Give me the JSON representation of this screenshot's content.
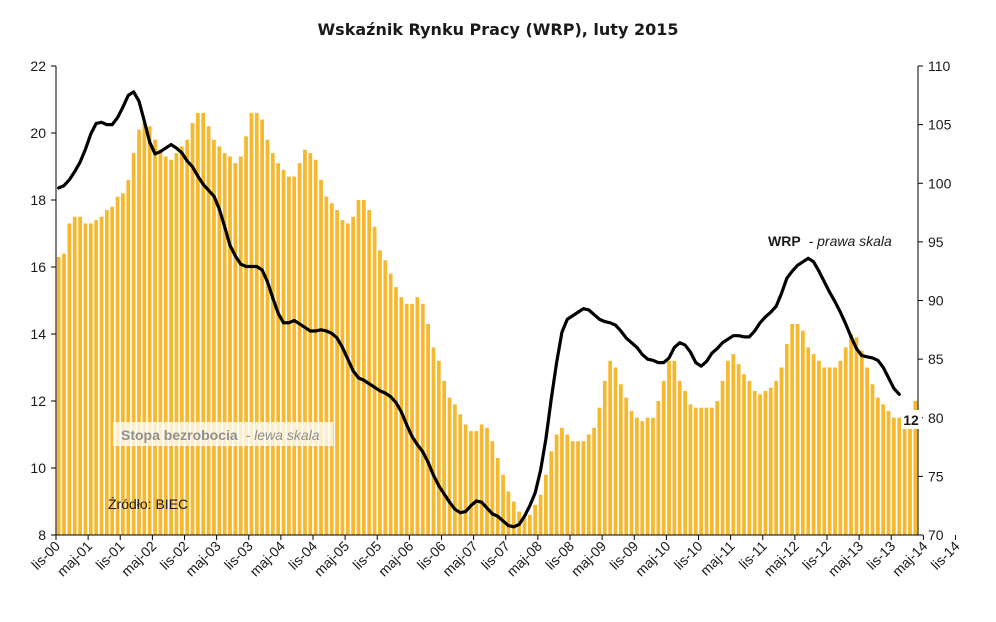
{
  "colors": {
    "bar": "#f5b82e",
    "line": "#000000",
    "axis": "#000000",
    "bar_label_bg": "#ffffff"
  },
  "chart_data": {
    "type": "bar+line",
    "title": "Wskaźnik Rynku Pracy (WRP), luty 2015",
    "x_tick_labels": [
      "lis-00",
      "maj-01",
      "lis-01",
      "maj-02",
      "lis-02",
      "maj-03",
      "lis-03",
      "maj-04",
      "lis-04",
      "maj-05",
      "lis-05",
      "maj-06",
      "lis-06",
      "maj-07",
      "lis-07",
      "maj-08",
      "lis-08",
      "maj-09",
      "lis-09",
      "maj-10",
      "lis-10",
      "maj-11",
      "lis-11",
      "maj-12",
      "lis-12",
      "maj-13",
      "lis-13",
      "maj-14",
      "lis-14"
    ],
    "y_left": {
      "min": 8,
      "max": 22,
      "ticks": [
        "8",
        "10",
        "12",
        "14",
        "16",
        "18",
        "20",
        "22"
      ]
    },
    "y_right": {
      "min": 70,
      "max": 110,
      "ticks": [
        "70",
        "75",
        "80",
        "85",
        "90",
        "95",
        "100",
        "105",
        "110"
      ]
    },
    "start_month": "lis-00",
    "bars": {
      "name": "Stopa bezrobocia",
      "name_suffix": "- lewa skala",
      "axis": "left",
      "values": [
        16.3,
        16.4,
        17.3,
        17.5,
        17.5,
        17.3,
        17.3,
        17.4,
        17.5,
        17.7,
        17.8,
        18.1,
        18.2,
        18.6,
        19.4,
        20.1,
        20.3,
        20.2,
        19.8,
        19.5,
        19.3,
        19.2,
        19.4,
        19.6,
        19.8,
        20.3,
        20.6,
        20.6,
        20.2,
        19.8,
        19.6,
        19.4,
        19.3,
        19.1,
        19.3,
        19.9,
        20.6,
        20.6,
        20.4,
        19.8,
        19.4,
        19.1,
        18.9,
        18.7,
        18.7,
        19.1,
        19.5,
        19.4,
        19.2,
        18.6,
        18.1,
        17.9,
        17.7,
        17.4,
        17.3,
        17.5,
        18.0,
        18.0,
        17.7,
        17.2,
        16.5,
        16.2,
        15.8,
        15.4,
        15.1,
        14.9,
        14.9,
        15.1,
        14.9,
        14.3,
        13.6,
        13.2,
        12.6,
        12.1,
        11.9,
        11.6,
        11.3,
        11.1,
        11.1,
        11.3,
        11.2,
        10.8,
        10.3,
        9.8,
        9.3,
        9.0,
        8.7,
        8.5,
        8.6,
        8.9,
        9.2,
        9.8,
        10.5,
        11.0,
        11.2,
        11.0,
        10.8,
        10.8,
        10.8,
        11.0,
        11.2,
        11.8,
        12.6,
        13.2,
        13.0,
        12.5,
        12.1,
        11.7,
        11.5,
        11.4,
        11.5,
        11.5,
        12.0,
        12.6,
        13.2,
        13.2,
        12.6,
        12.3,
        11.9,
        11.8,
        11.8,
        11.8,
        11.8,
        12.0,
        12.6,
        13.2,
        13.4,
        13.1,
        12.8,
        12.6,
        12.3,
        12.2,
        12.3,
        12.4,
        12.6,
        13.0,
        13.7,
        14.3,
        14.3,
        14.1,
        13.6,
        13.4,
        13.2,
        13.0,
        13.0,
        13.0,
        13.2,
        13.6,
        14.0,
        13.9,
        13.5,
        13.0,
        12.5,
        12.1,
        11.9,
        11.7,
        11.5,
        11.5,
        11.4,
        11.5,
        12.0
      ]
    },
    "line": {
      "name": "WRP",
      "name_suffix": "- prawa skala",
      "axis": "right",
      "values": [
        99.6,
        99.8,
        100.3,
        101.0,
        101.8,
        102.9,
        104.2,
        105.1,
        105.2,
        105.0,
        105.0,
        105.6,
        106.5,
        107.5,
        107.8,
        107.0,
        105.3,
        103.5,
        102.5,
        102.7,
        103.0,
        103.3,
        103.0,
        102.6,
        101.9,
        101.4,
        100.6,
        99.9,
        99.4,
        98.9,
        97.8,
        96.3,
        94.7,
        93.8,
        93.1,
        92.9,
        92.9,
        92.9,
        92.6,
        91.6,
        90.2,
        88.9,
        88.1,
        88.1,
        88.3,
        88.0,
        87.7,
        87.4,
        87.4,
        87.5,
        87.4,
        87.2,
        86.8,
        86.0,
        85.0,
        84.0,
        83.4,
        83.2,
        82.9,
        82.6,
        82.3,
        82.1,
        81.8,
        81.3,
        80.5,
        79.4,
        78.4,
        77.7,
        77.1,
        76.2,
        75.1,
        74.2,
        73.5,
        72.8,
        72.2,
        71.9,
        72.0,
        72.5,
        72.9,
        72.8,
        72.3,
        71.8,
        71.6,
        71.2,
        70.8,
        70.7,
        70.9,
        71.6,
        72.5,
        73.6,
        75.5,
        78.2,
        81.6,
        84.7,
        87.3,
        88.4,
        88.7,
        89.0,
        89.3,
        89.2,
        88.8,
        88.4,
        88.2,
        88.1,
        87.9,
        87.4,
        86.8,
        86.4,
        86.0,
        85.4,
        85.0,
        84.9,
        84.7,
        84.7,
        85.1,
        86.0,
        86.4,
        86.2,
        85.6,
        84.7,
        84.4,
        84.8,
        85.5,
        85.9,
        86.4,
        86.7,
        87.0,
        87.0,
        86.9,
        86.9,
        87.4,
        88.1,
        88.6,
        89.0,
        89.5,
        90.6,
        91.9,
        92.5,
        93.0,
        93.3,
        93.6,
        93.3,
        92.5,
        91.6,
        90.7,
        89.9,
        89.0,
        88.0,
        86.9,
        85.9,
        85.3,
        85.2,
        85.1,
        84.9,
        84.3,
        83.4,
        82.5,
        82.0
      ]
    },
    "annotations": {
      "last_bar_label": "12",
      "source": "Źródło: BIEC"
    }
  }
}
